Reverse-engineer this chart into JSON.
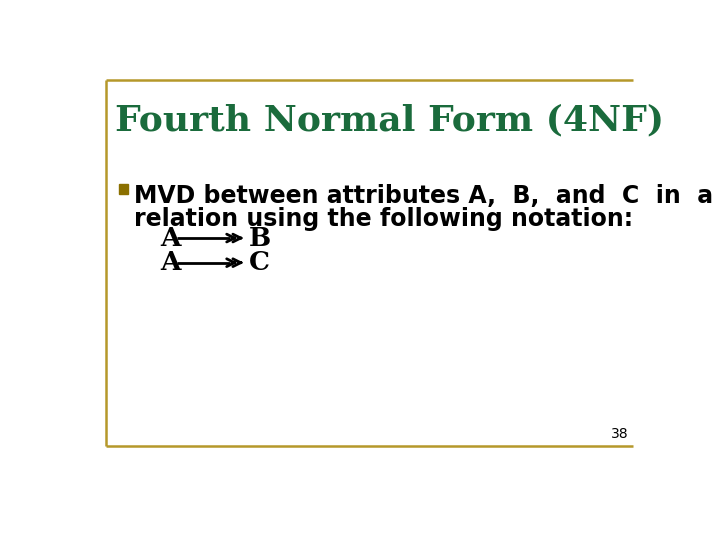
{
  "title": "Fourth Normal Form (4NF)",
  "title_color": "#1a6b3c",
  "title_fontsize": 26,
  "bg_color": "#ffffff",
  "border_color": "#b5982a",
  "body_text_line1": "MVD between attributes A,  B,  and  C  in  a",
  "body_text_line2": "relation using the following notation:",
  "body_fontsize": 17,
  "arrow_fontsize": 17,
  "page_number": "38",
  "page_number_fontsize": 10,
  "bullet_color": "#8B7000"
}
